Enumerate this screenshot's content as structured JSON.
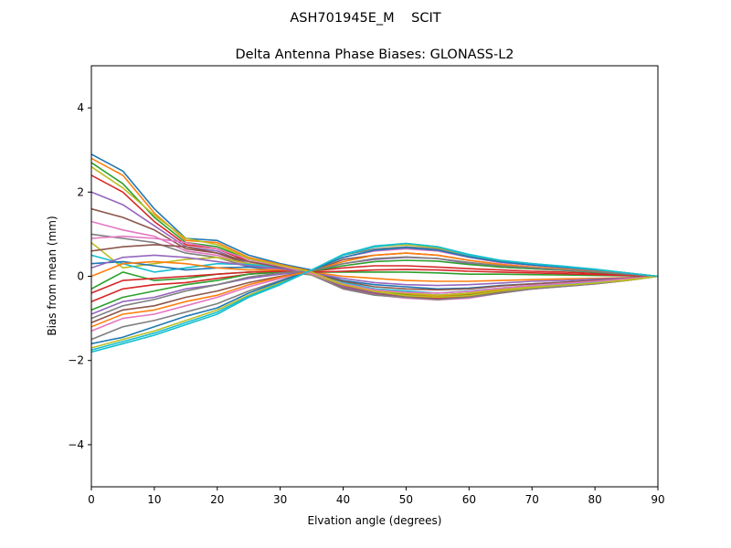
{
  "chart_data": {
    "type": "line",
    "suptitle": "ASH701945E_M    SCIT",
    "title": "Delta Antenna Phase Biases: GLONASS-L2",
    "xlabel": "Elvation angle (degrees)",
    "ylabel": "Bias from mean (mm)",
    "xlim": [
      0,
      90
    ],
    "ylim": [
      -5,
      5
    ],
    "xticks": [
      0,
      10,
      20,
      30,
      40,
      50,
      60,
      70,
      80,
      90
    ],
    "yticks": [
      -4,
      -2,
      0,
      2,
      4
    ],
    "grid": false,
    "legend": "none",
    "x": [
      0,
      5,
      10,
      15,
      20,
      25,
      30,
      35,
      40,
      45,
      50,
      55,
      60,
      65,
      70,
      75,
      80,
      85,
      90
    ],
    "series": [
      {
        "color": "#1f77b4",
        "values": [
          2.9,
          2.5,
          1.6,
          0.9,
          0.85,
          0.5,
          0.3,
          0.15,
          -0.15,
          -0.3,
          -0.4,
          -0.45,
          -0.4,
          -0.3,
          -0.25,
          -0.2,
          -0.15,
          -0.1,
          0.0
        ]
      },
      {
        "color": "#ff7f0e",
        "values": [
          2.8,
          2.4,
          1.5,
          0.85,
          0.8,
          0.45,
          0.28,
          0.12,
          -0.18,
          -0.32,
          -0.42,
          -0.48,
          -0.42,
          -0.32,
          -0.26,
          -0.21,
          -0.16,
          -0.1,
          0.0
        ]
      },
      {
        "color": "#2ca02c",
        "values": [
          2.7,
          2.2,
          1.4,
          0.8,
          0.7,
          0.4,
          0.25,
          0.1,
          -0.2,
          -0.35,
          -0.45,
          -0.5,
          -0.45,
          -0.35,
          -0.27,
          -0.22,
          -0.16,
          -0.1,
          0.0
        ]
      },
      {
        "color": "#d62728",
        "values": [
          2.4,
          2.0,
          1.3,
          0.75,
          0.65,
          0.35,
          0.22,
          0.1,
          -0.22,
          -0.38,
          -0.48,
          -0.52,
          -0.48,
          -0.36,
          -0.28,
          -0.22,
          -0.17,
          -0.1,
          0.0
        ]
      },
      {
        "color": "#9467bd",
        "values": [
          2.0,
          1.7,
          1.2,
          0.7,
          0.6,
          0.3,
          0.2,
          0.08,
          -0.25,
          -0.4,
          -0.5,
          -0.55,
          -0.5,
          -0.38,
          -0.3,
          -0.23,
          -0.17,
          -0.1,
          0.0
        ]
      },
      {
        "color": "#8c564b",
        "values": [
          1.6,
          1.4,
          1.1,
          0.65,
          0.55,
          0.28,
          0.18,
          0.05,
          -0.28,
          -0.42,
          -0.5,
          -0.55,
          -0.5,
          -0.38,
          -0.3,
          -0.24,
          -0.18,
          -0.1,
          0.0
        ]
      },
      {
        "color": "#e377c2",
        "values": [
          1.3,
          1.1,
          0.95,
          0.6,
          0.5,
          0.25,
          0.15,
          0.05,
          -0.3,
          -0.44,
          -0.52,
          -0.56,
          -0.52,
          -0.4,
          -0.3,
          -0.24,
          -0.18,
          -0.1,
          0.0
        ]
      },
      {
        "color": "#7f7f7f",
        "values": [
          1.0,
          0.9,
          0.8,
          0.55,
          0.45,
          0.22,
          0.12,
          0.03,
          -0.3,
          -0.45,
          -0.5,
          -0.55,
          -0.5,
          -0.4,
          -0.3,
          -0.24,
          -0.18,
          -0.1,
          0.0
        ]
      },
      {
        "color": "#bcbd22",
        "values": [
          0.8,
          0.2,
          0.3,
          0.4,
          0.45,
          0.3,
          0.2,
          0.05,
          -0.2,
          -0.35,
          -0.4,
          -0.45,
          -0.4,
          -0.3,
          -0.25,
          -0.2,
          -0.15,
          -0.1,
          0.0
        ]
      },
      {
        "color": "#17becf",
        "values": [
          0.5,
          0.3,
          0.1,
          0.2,
          0.3,
          0.28,
          0.22,
          0.08,
          -0.15,
          -0.3,
          -0.35,
          -0.4,
          -0.35,
          -0.28,
          -0.22,
          -0.18,
          -0.13,
          -0.08,
          0.0
        ]
      },
      {
        "color": "#1f77b4",
        "values": [
          0.3,
          0.35,
          0.25,
          0.15,
          0.2,
          0.22,
          0.2,
          0.1,
          -0.1,
          -0.2,
          -0.25,
          -0.3,
          -0.28,
          -0.22,
          -0.18,
          -0.14,
          -0.1,
          -0.06,
          0.0
        ]
      },
      {
        "color": "#ff7f0e",
        "values": [
          0.0,
          0.3,
          0.35,
          0.3,
          0.2,
          0.15,
          0.15,
          0.1,
          0.0,
          -0.05,
          -0.1,
          -0.12,
          -0.12,
          -0.1,
          -0.08,
          -0.06,
          -0.05,
          -0.03,
          0.0
        ]
      },
      {
        "color": "#2ca02c",
        "values": [
          -0.3,
          0.1,
          -0.1,
          -0.05,
          0.05,
          0.1,
          0.12,
          0.1,
          0.1,
          0.1,
          0.1,
          0.08,
          0.05,
          0.05,
          0.04,
          0.03,
          0.02,
          0.01,
          0.0
        ]
      },
      {
        "color": "#d62728",
        "values": [
          -0.6,
          -0.3,
          -0.2,
          -0.15,
          -0.05,
          0.05,
          0.1,
          0.12,
          0.2,
          0.25,
          0.25,
          0.22,
          0.18,
          0.15,
          0.12,
          0.1,
          0.07,
          0.04,
          0.0
        ]
      },
      {
        "color": "#9467bd",
        "values": [
          -0.9,
          -0.6,
          -0.5,
          -0.3,
          -0.2,
          -0.05,
          0.05,
          0.12,
          0.3,
          0.4,
          0.45,
          0.42,
          0.3,
          0.22,
          0.18,
          0.14,
          0.1,
          0.05,
          0.0
        ]
      },
      {
        "color": "#8c564b",
        "values": [
          -1.1,
          -0.8,
          -0.7,
          -0.5,
          -0.35,
          -0.15,
          0.0,
          0.12,
          0.4,
          0.5,
          0.55,
          0.5,
          0.38,
          0.28,
          0.22,
          0.16,
          0.12,
          0.06,
          0.0
        ]
      },
      {
        "color": "#e377c2",
        "values": [
          -1.3,
          -1.0,
          -0.9,
          -0.7,
          -0.5,
          -0.25,
          -0.05,
          0.15,
          0.45,
          0.6,
          0.65,
          0.6,
          0.45,
          0.32,
          0.26,
          0.2,
          0.14,
          0.07,
          0.0
        ]
      },
      {
        "color": "#7f7f7f",
        "values": [
          -1.5,
          -1.2,
          -1.05,
          -0.85,
          -0.65,
          -0.35,
          -0.1,
          0.15,
          0.5,
          0.65,
          0.7,
          0.65,
          0.48,
          0.35,
          0.28,
          0.22,
          0.15,
          0.08,
          0.0
        ]
      },
      {
        "color": "#bcbd22",
        "values": [
          -1.7,
          -1.5,
          -1.3,
          -1.05,
          -0.8,
          -0.45,
          -0.15,
          0.15,
          0.5,
          0.7,
          0.75,
          0.68,
          0.5,
          0.37,
          0.3,
          0.23,
          0.16,
          0.08,
          0.0
        ]
      },
      {
        "color": "#17becf",
        "values": [
          -1.8,
          -1.6,
          -1.4,
          -1.15,
          -0.9,
          -0.5,
          -0.2,
          0.15,
          0.5,
          0.7,
          0.78,
          0.7,
          0.5,
          0.38,
          0.3,
          0.24,
          0.17,
          0.08,
          0.0
        ]
      },
      {
        "color": "#1f77b4",
        "values": [
          -1.6,
          -1.45,
          -1.2,
          -0.95,
          -0.75,
          -0.4,
          -0.12,
          0.14,
          0.45,
          0.62,
          0.68,
          0.62,
          0.46,
          0.34,
          0.27,
          0.21,
          0.15,
          0.07,
          0.0
        ]
      },
      {
        "color": "#ff7f0e",
        "values": [
          -1.2,
          -0.9,
          -0.8,
          -0.6,
          -0.45,
          -0.2,
          -0.02,
          0.12,
          0.35,
          0.5,
          0.55,
          0.5,
          0.38,
          0.28,
          0.22,
          0.17,
          0.12,
          0.06,
          0.0
        ]
      },
      {
        "color": "#2ca02c",
        "values": [
          -0.8,
          -0.5,
          -0.35,
          -0.2,
          -0.1,
          0.05,
          0.1,
          0.12,
          0.25,
          0.35,
          0.38,
          0.36,
          0.28,
          0.22,
          0.18,
          0.14,
          0.1,
          0.05,
          0.0
        ]
      },
      {
        "color": "#d62728",
        "values": [
          -0.4,
          -0.1,
          -0.05,
          0.0,
          0.05,
          0.1,
          0.12,
          0.1,
          0.12,
          0.15,
          0.16,
          0.15,
          0.12,
          0.1,
          0.08,
          0.06,
          0.04,
          0.02,
          0.0
        ]
      },
      {
        "color": "#9467bd",
        "values": [
          0.2,
          0.45,
          0.5,
          0.45,
          0.35,
          0.25,
          0.18,
          0.08,
          -0.05,
          -0.15,
          -0.2,
          -0.22,
          -0.2,
          -0.16,
          -0.12,
          -0.1,
          -0.07,
          -0.04,
          0.0
        ]
      },
      {
        "color": "#8c564b",
        "values": [
          0.6,
          0.7,
          0.75,
          0.7,
          0.55,
          0.35,
          0.22,
          0.07,
          -0.12,
          -0.25,
          -0.3,
          -0.32,
          -0.3,
          -0.23,
          -0.18,
          -0.14,
          -0.1,
          -0.05,
          0.0
        ]
      },
      {
        "color": "#e377c2",
        "values": [
          0.9,
          0.95,
          0.9,
          0.8,
          0.65,
          0.4,
          0.24,
          0.06,
          -0.18,
          -0.32,
          -0.38,
          -0.4,
          -0.36,
          -0.28,
          -0.22,
          -0.17,
          -0.12,
          -0.06,
          0.0
        ]
      },
      {
        "color": "#7f7f7f",
        "values": [
          -1.0,
          -0.7,
          -0.55,
          -0.35,
          -0.2,
          -0.02,
          0.08,
          0.13,
          0.3,
          0.42,
          0.46,
          0.42,
          0.33,
          0.25,
          0.2,
          0.15,
          0.11,
          0.05,
          0.0
        ]
      },
      {
        "color": "#bcbd22",
        "values": [
          2.6,
          2.1,
          1.45,
          0.9,
          0.75,
          0.42,
          0.26,
          0.1,
          -0.2,
          -0.36,
          -0.46,
          -0.5,
          -0.46,
          -0.35,
          -0.27,
          -0.21,
          -0.16,
          -0.09,
          0.0
        ]
      },
      {
        "color": "#17becf",
        "values": [
          -1.75,
          -1.55,
          -1.35,
          -1.1,
          -0.85,
          -0.48,
          -0.18,
          0.15,
          0.52,
          0.72,
          0.78,
          0.7,
          0.52,
          0.38,
          0.3,
          0.23,
          0.16,
          0.08,
          0.0
        ]
      }
    ]
  }
}
